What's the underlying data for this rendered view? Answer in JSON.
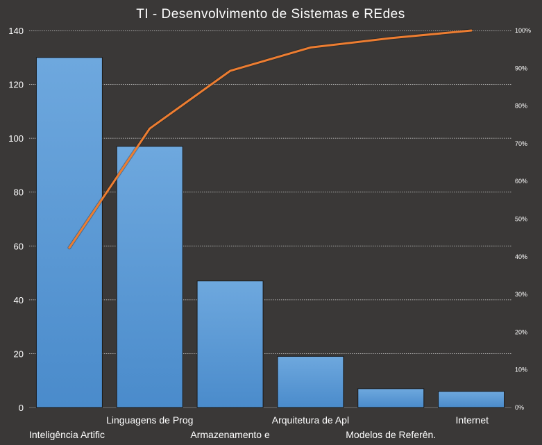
{
  "chart_data": {
    "type": "bar",
    "title": "TI - Desenvolvimento  de Sistemas e REdes",
    "categories": [
      "Inteligência Artific",
      "Linguagens de Prog",
      "Armazenamento  e",
      "Arquitetura  de Apl",
      "Modelos de Referên.",
      "Internet"
    ],
    "series": [
      {
        "type": "bar",
        "values": [
          130,
          97,
          47,
          19,
          7,
          6
        ]
      },
      {
        "type": "line",
        "axis": "secondary",
        "values": [
          42.4,
          74.0,
          89.3,
          95.5,
          98.0,
          100
        ]
      }
    ],
    "ylim": [
      0,
      140
    ],
    "yticks": [
      0,
      20,
      40,
      60,
      80,
      100,
      120,
      140
    ],
    "y2lim": [
      0,
      100
    ],
    "y2ticks": [
      "0%",
      "10%",
      "20%",
      "30%",
      "40%",
      "50%",
      "60%",
      "70%",
      "80%",
      "90%",
      "100%"
    ],
    "grid": true,
    "legend": "none",
    "colors": {
      "background": "#3a3837",
      "bar_fill": "#5b9bd5",
      "bar_fill_light": "#7fb2e6",
      "bar_stroke": "#1a1a1a",
      "line": "#ed7d31",
      "text": "#ffffff",
      "grid": "#d0d0d0"
    }
  }
}
